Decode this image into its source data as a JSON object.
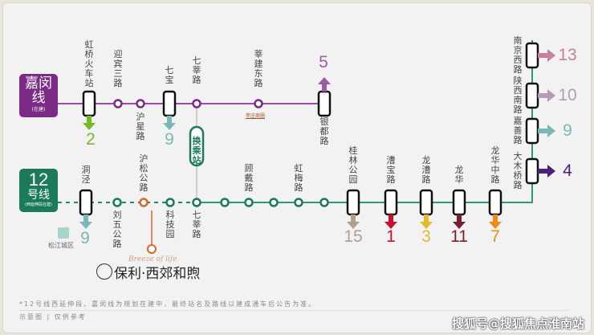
{
  "lines": {
    "jiamin": {
      "name1": "嘉闵",
      "name2": "线",
      "sub": "(在建)",
      "color": "#7b2a86"
    },
    "l12": {
      "name1": "12",
      "name2": "号线",
      "sub": "(西延伸段在建)",
      "color": "#1b7a5a"
    }
  },
  "jiamin_stations": [
    "虹桥火车站",
    "迎宾三路",
    "沪星路",
    "七宝",
    "七莘路",
    "莘建东路",
    "银都路"
  ],
  "jiamin_note": "莘庄商圈",
  "transfer_label": "换乘站",
  "l12_stations": [
    "洞泾",
    "刘五公路",
    "沪松公路",
    "科技园",
    "七莘路",
    "顾戴路",
    "虹梅路",
    "桂林公园",
    "漕宝路",
    "龙漕路",
    "龙华",
    "龙华中路",
    "大木桥路",
    "嘉善路",
    "陕西南路",
    "南京西路"
  ],
  "transfers": [
    {
      "line": "2",
      "color": "#76b82a"
    },
    {
      "line": "9",
      "color": "#7ab8b8"
    },
    {
      "line": "5",
      "color": "#9b5ba5"
    },
    {
      "line": "9",
      "color": "#7ab8b8"
    },
    {
      "line": "15",
      "color": "#b49e8e"
    },
    {
      "line": "1",
      "color": "#c8102e"
    },
    {
      "line": "3",
      "color": "#e4b92a"
    },
    {
      "line": "11",
      "color": "#7a1e2c"
    },
    {
      "line": "7",
      "color": "#f08a1a"
    },
    {
      "line": "13",
      "color": "#c97fa0"
    },
    {
      "line": "10",
      "color": "#b89ab8"
    },
    {
      "line": "9",
      "color": "#7ab8b8"
    },
    {
      "line": "4",
      "color": "#4b1f7c"
    }
  ],
  "district": "松江城区",
  "project": {
    "logo_script": "Breeze of life",
    "name": "保利·西郊和煦",
    "color": "#d9662e"
  },
  "footnote": "*12号线西延伸段、嘉闵线为规划在建中，最终站名及路线以建成通车后公告为准。",
  "disclaimer": "示意图 | 仅供参考",
  "watermark": "搜狐号@搜狐焦点淮南站"
}
